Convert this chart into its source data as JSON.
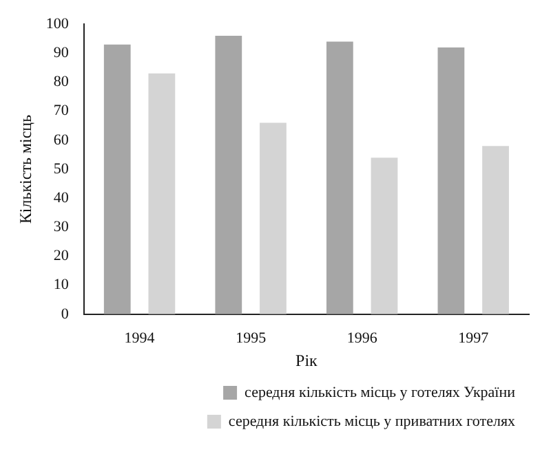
{
  "chart_data": {
    "type": "bar",
    "xlabel": "Рік",
    "ylabel": "Кількість місць",
    "categories": [
      "1994",
      "1995",
      "1996",
      "1997"
    ],
    "series": [
      {
        "name": "середня кількість місць у готелях України",
        "color": "#a6a6a6",
        "values": [
          93,
          96,
          94,
          92
        ]
      },
      {
        "name": "середня кількість місць у приватних готелях",
        "color": "#d4d4d4",
        "values": [
          83,
          66,
          54,
          58
        ]
      }
    ],
    "ylim": [
      0,
      100
    ],
    "yticks": [
      0,
      10,
      20,
      30,
      40,
      50,
      60,
      70,
      80,
      90,
      100
    ],
    "grid": false,
    "legend": "bottom right"
  }
}
